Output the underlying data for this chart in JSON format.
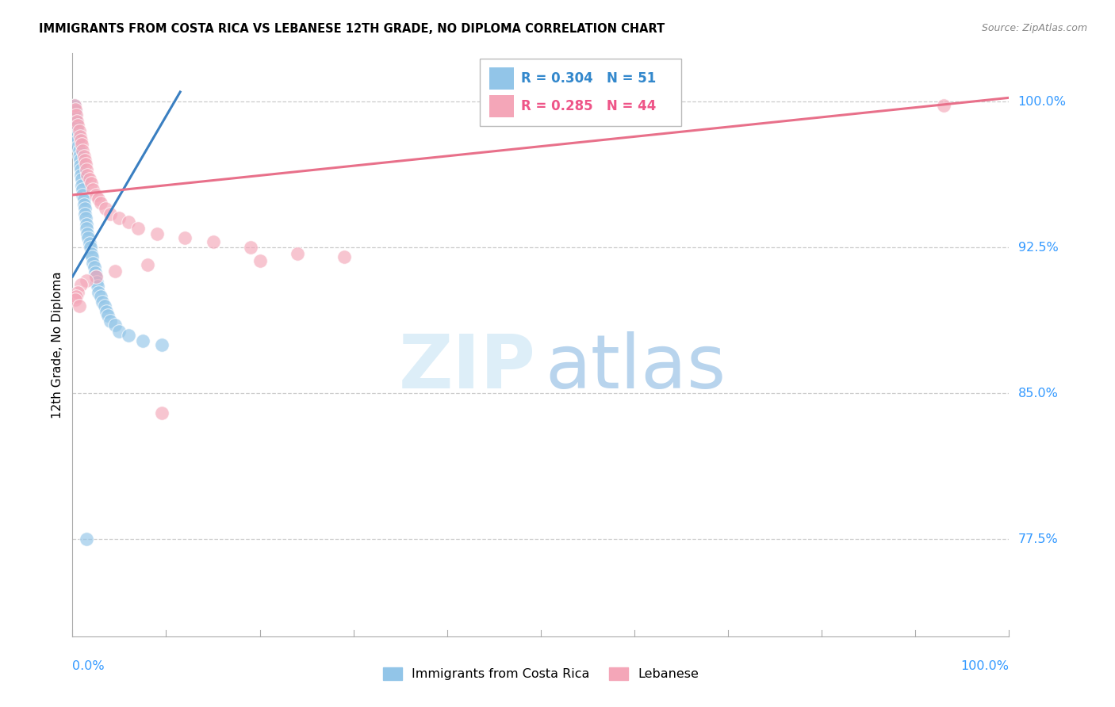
{
  "title": "IMMIGRANTS FROM COSTA RICA VS LEBANESE 12TH GRADE, NO DIPLOMA CORRELATION CHART",
  "source": "Source: ZipAtlas.com",
  "ylabel": "12th Grade, No Diploma",
  "yticks": [
    0.775,
    0.85,
    0.925,
    1.0
  ],
  "ytick_labels": [
    "77.5%",
    "85.0%",
    "92.5%",
    "100.0%"
  ],
  "xtick_labels": [
    "0.0%",
    "100.0%"
  ],
  "xmin": 0.0,
  "xmax": 1.0,
  "ymin": 0.725,
  "ymax": 1.025,
  "legend1_R": "0.304",
  "legend1_N": "51",
  "legend2_R": "0.285",
  "legend2_N": "44",
  "color_blue": "#92c5e8",
  "color_pink": "#f4a6b8",
  "color_blue_line": "#3a7fc1",
  "color_pink_line": "#e8708a",
  "grid_color": "#cccccc",
  "cr_x": [
    0.002,
    0.003,
    0.003,
    0.004,
    0.004,
    0.005,
    0.005,
    0.006,
    0.006,
    0.007,
    0.007,
    0.008,
    0.008,
    0.009,
    0.009,
    0.01,
    0.01,
    0.011,
    0.011,
    0.012,
    0.012,
    0.013,
    0.013,
    0.014,
    0.015,
    0.015,
    0.016,
    0.017,
    0.018,
    0.019,
    0.02,
    0.021,
    0.022,
    0.023,
    0.024,
    0.025,
    0.026,
    0.027,
    0.028,
    0.03,
    0.032,
    0.034,
    0.036,
    0.038,
    0.04,
    0.045,
    0.05,
    0.06,
    0.075,
    0.095,
    0.015
  ],
  "cr_y": [
    0.998,
    0.995,
    0.992,
    0.99,
    0.987,
    0.985,
    0.982,
    0.98,
    0.977,
    0.975,
    0.972,
    0.97,
    0.967,
    0.965,
    0.962,
    0.96,
    0.957,
    0.955,
    0.952,
    0.95,
    0.947,
    0.945,
    0.942,
    0.94,
    0.937,
    0.935,
    0.932,
    0.93,
    0.927,
    0.925,
    0.922,
    0.92,
    0.917,
    0.915,
    0.912,
    0.91,
    0.907,
    0.905,
    0.902,
    0.9,
    0.897,
    0.895,
    0.892,
    0.89,
    0.887,
    0.885,
    0.882,
    0.88,
    0.877,
    0.875,
    0.775
  ],
  "lb_x": [
    0.002,
    0.003,
    0.004,
    0.005,
    0.006,
    0.007,
    0.008,
    0.009,
    0.01,
    0.011,
    0.012,
    0.013,
    0.014,
    0.015,
    0.016,
    0.018,
    0.02,
    0.022,
    0.025,
    0.028,
    0.03,
    0.035,
    0.04,
    0.05,
    0.06,
    0.07,
    0.09,
    0.12,
    0.15,
    0.19,
    0.24,
    0.29,
    0.2,
    0.08,
    0.045,
    0.025,
    0.015,
    0.009,
    0.006,
    0.004,
    0.003,
    0.007,
    0.095,
    0.93
  ],
  "lb_y": [
    0.998,
    0.996,
    0.993,
    0.99,
    0.988,
    0.985,
    0.982,
    0.98,
    0.978,
    0.975,
    0.972,
    0.97,
    0.968,
    0.965,
    0.962,
    0.96,
    0.958,
    0.955,
    0.952,
    0.95,
    0.948,
    0.945,
    0.942,
    0.94,
    0.938,
    0.935,
    0.932,
    0.93,
    0.928,
    0.925,
    0.922,
    0.92,
    0.918,
    0.916,
    0.913,
    0.91,
    0.908,
    0.906,
    0.902,
    0.9,
    0.898,
    0.895,
    0.84,
    0.998
  ],
  "cr_line_x0": 0.0,
  "cr_line_x1": 0.115,
  "cr_line_y0": 0.91,
  "cr_line_y1": 1.005,
  "lb_line_x0": 0.0,
  "lb_line_x1": 1.0,
  "lb_line_y0": 0.952,
  "lb_line_y1": 1.002
}
